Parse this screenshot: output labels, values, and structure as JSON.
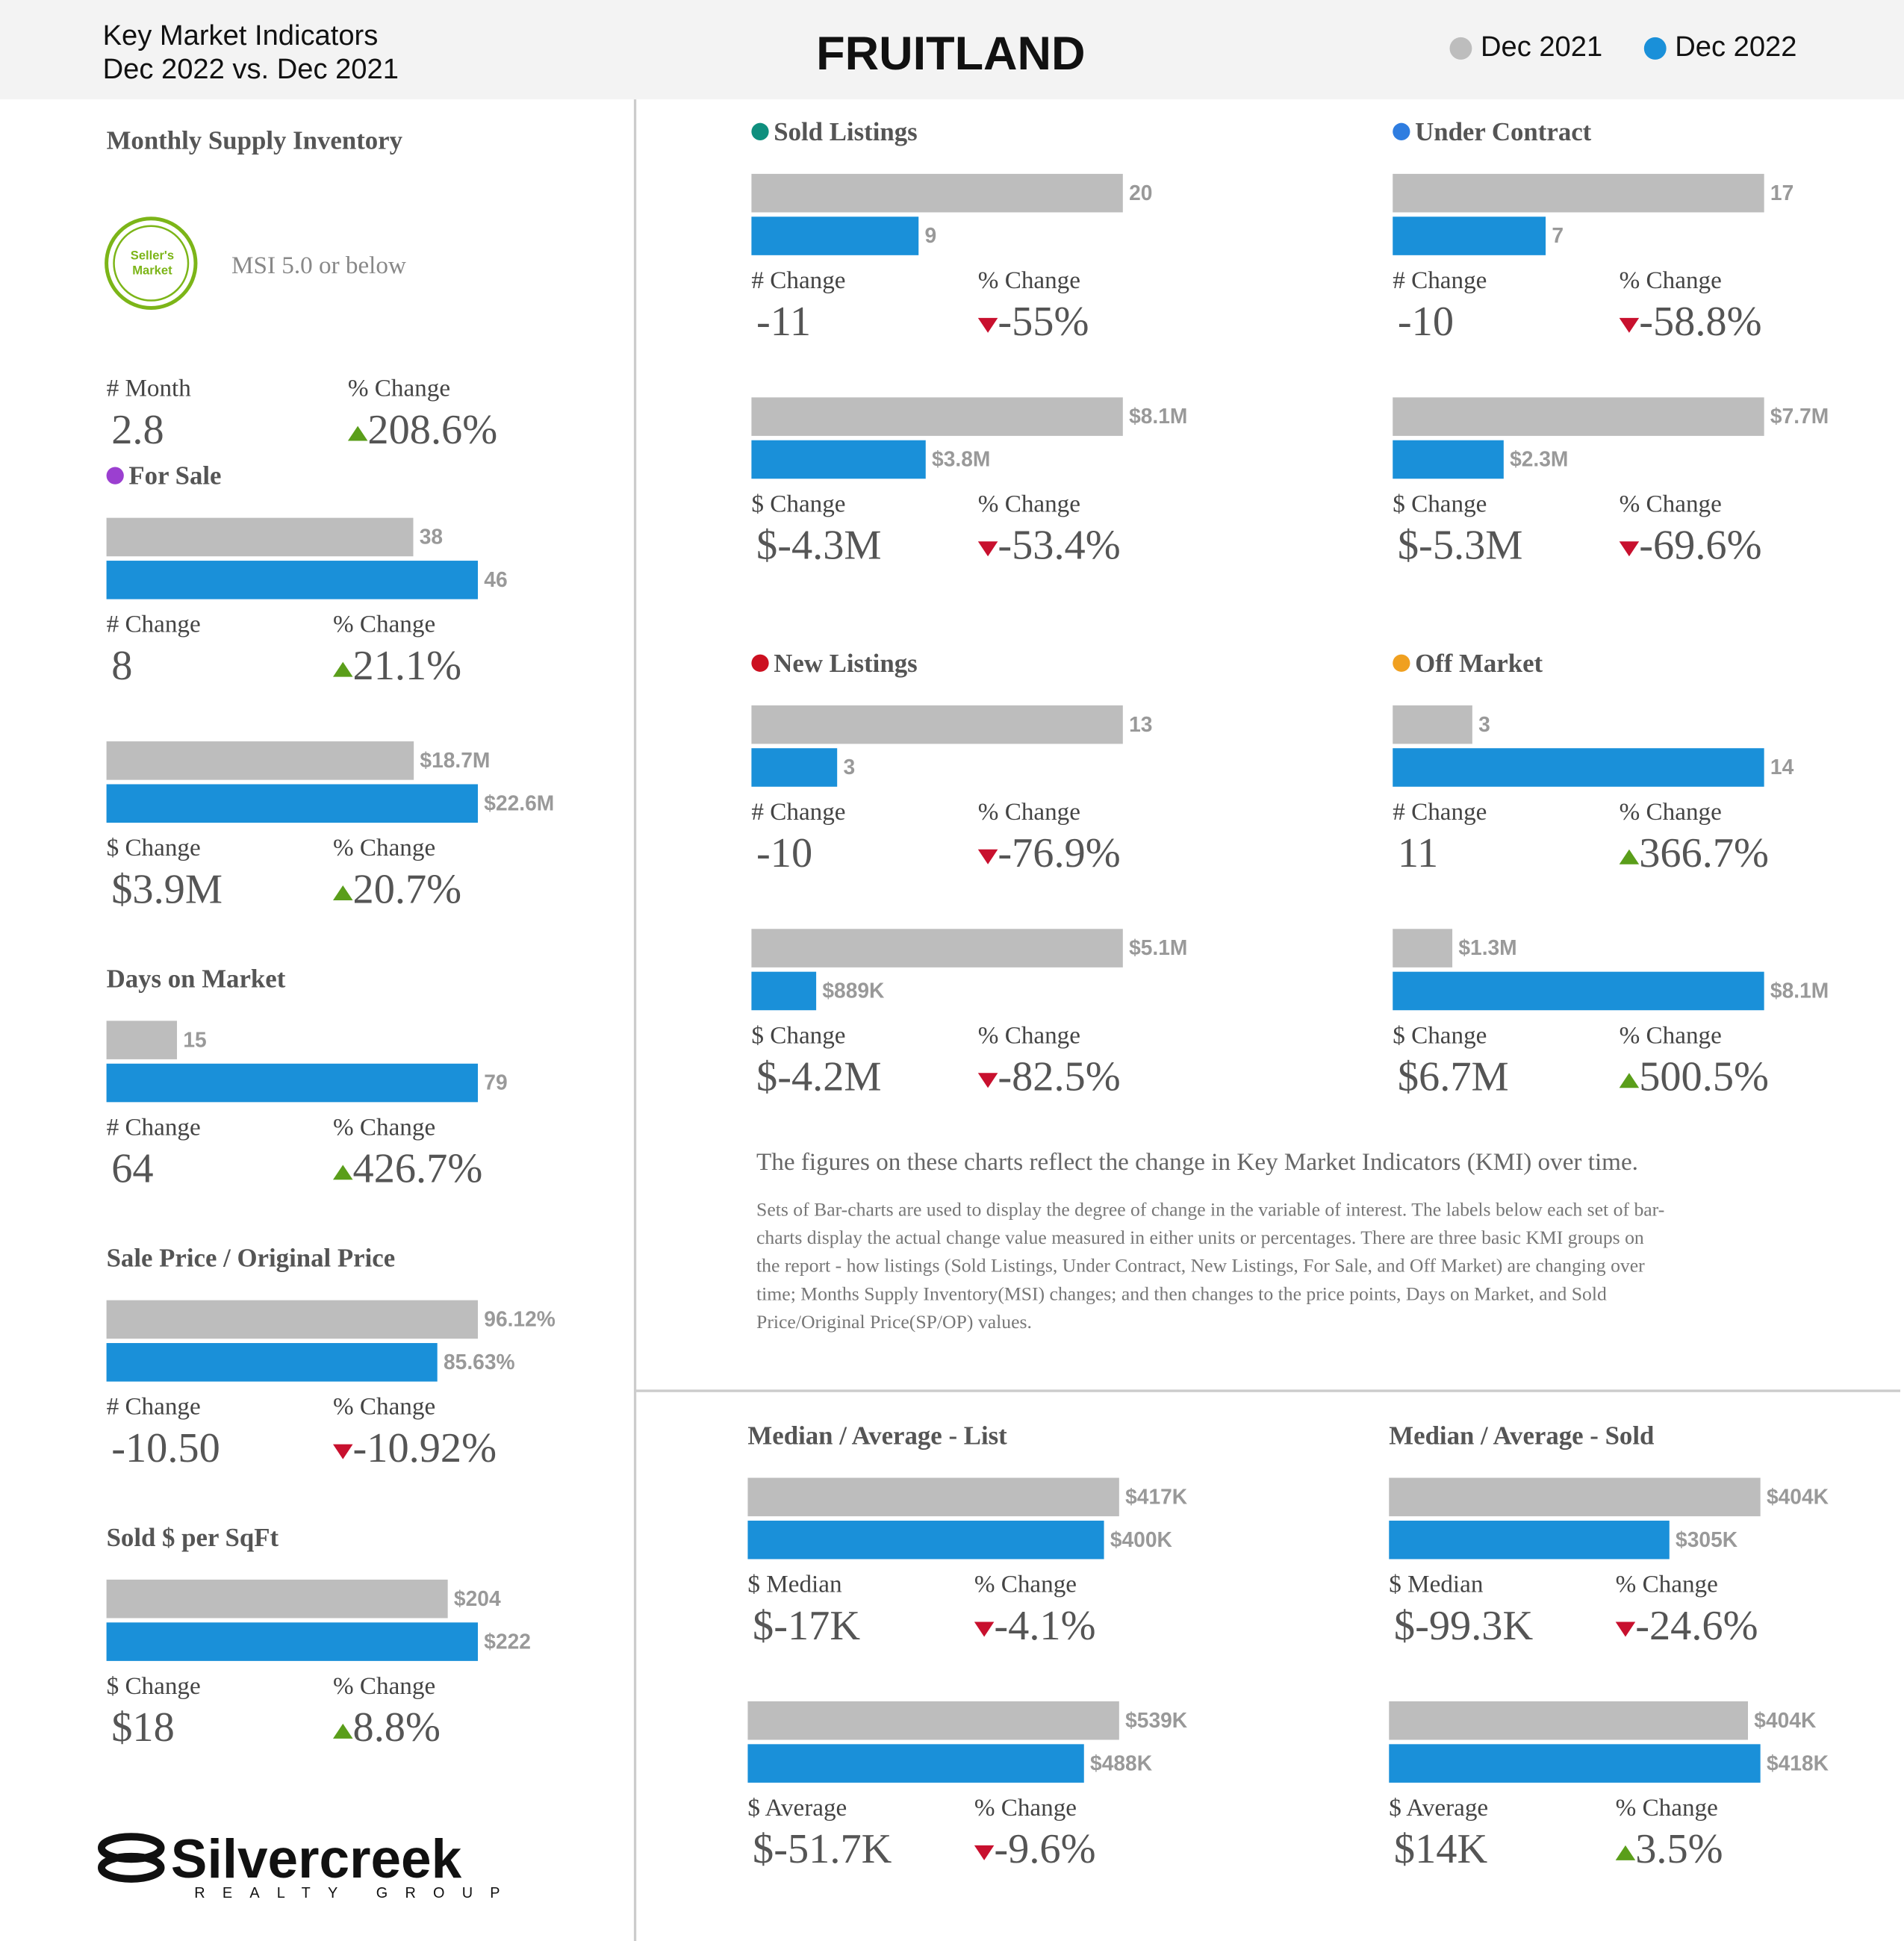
{
  "header": {
    "line1": "Key Market Indicators",
    "line2": "Dec 2022 vs. Dec 2021",
    "city": "FRUITLAND",
    "legend": [
      {
        "name": "Dec 2021",
        "color": "#bdbdbd"
      },
      {
        "name": "Dec 2022",
        "color": "#1a90d9"
      }
    ]
  },
  "msi": {
    "title": "Monthly Supply Inventory",
    "badge": [
      "Seller's",
      "Market"
    ],
    "note": "MSI 5.0 or below",
    "stats": [
      {
        "label": "# Month",
        "value": "2.8"
      },
      {
        "label": "% Change",
        "value": "208.6%",
        "dir": "up"
      }
    ]
  },
  "chart_data": [
    {
      "type": "bar",
      "title": "For Sale",
      "dot": "#9b3fd0",
      "values": [
        38,
        46
      ],
      "stats": [
        {
          "label": "# Change",
          "value": "8"
        },
        {
          "label": "% Change",
          "value": "21.1%",
          "dir": "up"
        }
      ]
    },
    {
      "type": "bar",
      "values": [
        18700000,
        22600000
      ],
      "value_labels": [
        "$18.7M",
        "$22.6M"
      ],
      "stats": [
        {
          "label": "$ Change",
          "value": "$3.9M"
        },
        {
          "label": "% Change",
          "value": "20.7%",
          "dir": "up"
        }
      ]
    },
    {
      "type": "bar",
      "title": "Days on Market",
      "values": [
        15,
        79
      ],
      "stats": [
        {
          "label": "# Change",
          "value": "64"
        },
        {
          "label": "% Change",
          "value": "426.7%",
          "dir": "up"
        }
      ]
    },
    {
      "type": "bar",
      "title": "Sale Price / Original Price",
      "values": [
        96.12,
        85.63
      ],
      "value_labels": [
        "96.12%",
        "85.63%"
      ],
      "stats": [
        {
          "label": "# Change",
          "value": "-10.50"
        },
        {
          "label": "% Change",
          "value": "-10.92%",
          "dir": "down"
        }
      ]
    },
    {
      "type": "bar",
      "title": "Sold $ per SqFt",
      "values": [
        204,
        222
      ],
      "value_labels": [
        "$204",
        "$222"
      ],
      "stats": [
        {
          "label": "$ Change",
          "value": "$18"
        },
        {
          "label": "% Change",
          "value": "8.8%",
          "dir": "up"
        }
      ]
    },
    {
      "type": "bar",
      "title": "Sold Listings",
      "dot": "#0f8f7e",
      "values": [
        20,
        9
      ],
      "stats": [
        {
          "label": "# Change",
          "value": "-11"
        },
        {
          "label": "% Change",
          "value": "-55%",
          "dir": "down"
        }
      ]
    },
    {
      "type": "bar",
      "values": [
        8100000,
        3800000
      ],
      "value_labels": [
        "$8.1M",
        "$3.8M"
      ],
      "stats": [
        {
          "label": "$ Change",
          "value": "$-4.3M"
        },
        {
          "label": "% Change",
          "value": "-53.4%",
          "dir": "down"
        }
      ]
    },
    {
      "type": "bar",
      "title": "Under Contract",
      "dot": "#2f7de0",
      "values": [
        17,
        7
      ],
      "stats": [
        {
          "label": "# Change",
          "value": "-10"
        },
        {
          "label": "% Change",
          "value": "-58.8%",
          "dir": "down"
        }
      ]
    },
    {
      "type": "bar",
      "values": [
        7700000,
        2300000
      ],
      "value_labels": [
        "$7.7M",
        "$2.3M"
      ],
      "stats": [
        {
          "label": "$ Change",
          "value": "$-5.3M"
        },
        {
          "label": "% Change",
          "value": "-69.6%",
          "dir": "down"
        }
      ]
    },
    {
      "type": "bar",
      "title": "New Listings",
      "dot": "#cc1020",
      "values": [
        13,
        3
      ],
      "stats": [
        {
          "label": "# Change",
          "value": "-10"
        },
        {
          "label": "% Change",
          "value": "-76.9%",
          "dir": "down"
        }
      ]
    },
    {
      "type": "bar",
      "values": [
        5100000,
        889000
      ],
      "value_labels": [
        "$5.1M",
        "$889K"
      ],
      "stats": [
        {
          "label": "$ Change",
          "value": "$-4.2M"
        },
        {
          "label": "% Change",
          "value": "-82.5%",
          "dir": "down"
        }
      ]
    },
    {
      "type": "bar",
      "title": "Off Market",
      "dot": "#f0a020",
      "values": [
        3,
        14
      ],
      "stats": [
        {
          "label": "# Change",
          "value": "11"
        },
        {
          "label": "% Change",
          "value": "366.7%",
          "dir": "up"
        }
      ]
    },
    {
      "type": "bar",
      "values": [
        1300000,
        8100000
      ],
      "value_labels": [
        "$1.3M",
        "$8.1M"
      ],
      "stats": [
        {
          "label": "$ Change",
          "value": "$6.7M"
        },
        {
          "label": "% Change",
          "value": "500.5%",
          "dir": "up"
        }
      ]
    },
    {
      "type": "bar",
      "title": "Median / Average - List",
      "values": [
        417000,
        400000
      ],
      "value_labels": [
        "$417K",
        "$400K"
      ],
      "stats": [
        {
          "label": "$ Median",
          "value": "$-17K"
        },
        {
          "label": "% Change",
          "value": "-4.1%",
          "dir": "down"
        }
      ]
    },
    {
      "type": "bar",
      "values": [
        539000,
        488000
      ],
      "value_labels": [
        "$539K",
        "$488K"
      ],
      "stats": [
        {
          "label": "$ Average",
          "value": "$-51.7K"
        },
        {
          "label": "% Change",
          "value": "-9.6%",
          "dir": "down"
        }
      ]
    },
    {
      "type": "bar",
      "title": "Median / Average - Sold",
      "values": [
        404000,
        305000
      ],
      "value_labels": [
        "$404K",
        "$305K"
      ],
      "stats": [
        {
          "label": "$ Median",
          "value": "$-99.3K"
        },
        {
          "label": "% Change",
          "value": "-24.6%",
          "dir": "down"
        }
      ]
    },
    {
      "type": "bar",
      "values": [
        404000,
        418000
      ],
      "value_labels": [
        "$404K",
        "$418K"
      ],
      "stats": [
        {
          "label": "$ Average",
          "value": "$14K"
        },
        {
          "label": "% Change",
          "value": "3.5%",
          "dir": "up"
        }
      ]
    }
  ],
  "notes": {
    "lead": "The figures on these charts reflect the change in Key Market Indicators (KMI) over time.",
    "body": [
      "Sets of Bar-charts are used to display the degree of change in the variable of interest. The labels below each set of bar-",
      "charts display the actual change value measured in either units or percentages. There are three basic KMI groups on",
      "the report - how listings (Sold Listings, Under Contract, New Listings, For Sale, and Off Market) are changing over",
      "time; Months Supply Inventory(MSI) changes; and then changes to the price points, Days on Market, and Sold",
      "Price/Original Price(SP/OP) values."
    ]
  },
  "logo": {
    "name": "Silvercreek",
    "sub": "REALTY GROUP"
  }
}
